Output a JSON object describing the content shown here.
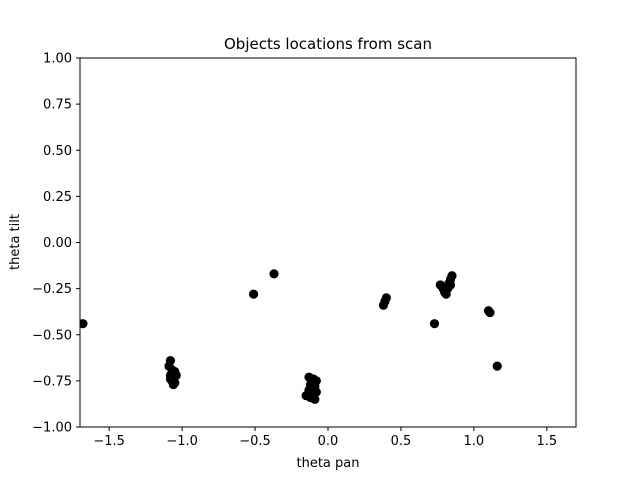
{
  "chart_data": {
    "type": "scatter",
    "title": "Objects locations from scan",
    "xlabel": "theta pan",
    "ylabel": "theta tilt",
    "xlim": [
      -1.7,
      1.7
    ],
    "ylim": [
      -1.0,
      1.0
    ],
    "x_ticks": [
      -1.5,
      -1.0,
      -0.5,
      0.0,
      0.5,
      1.0,
      1.5
    ],
    "x_tick_labels": [
      "−1.5",
      "−1.0",
      "−0.5",
      "0.0",
      "0.5",
      "1.0",
      "1.5"
    ],
    "y_ticks": [
      1.0,
      0.75,
      0.5,
      0.25,
      0.0,
      -0.25,
      -0.5,
      -0.75,
      -1.0
    ],
    "y_tick_labels": [
      "1.00",
      "0.75",
      "0.50",
      "0.25",
      "0.00",
      "−0.25",
      "−0.50",
      "−0.75",
      "−1.00"
    ],
    "grid": false,
    "marker_color": "#000000",
    "points": [
      {
        "x": -1.68,
        "y": -0.44
      },
      {
        "x": -1.08,
        "y": -0.64
      },
      {
        "x": -1.09,
        "y": -0.67
      },
      {
        "x": -1.07,
        "y": -0.69
      },
      {
        "x": -1.05,
        "y": -0.7
      },
      {
        "x": -1.08,
        "y": -0.72
      },
      {
        "x": -1.06,
        "y": -0.73
      },
      {
        "x": -1.04,
        "y": -0.72
      },
      {
        "x": -1.07,
        "y": -0.75
      },
      {
        "x": -1.05,
        "y": -0.76
      },
      {
        "x": -1.06,
        "y": -0.77
      },
      {
        "x": -1.08,
        "y": -0.74
      },
      {
        "x": -0.51,
        "y": -0.28
      },
      {
        "x": -0.37,
        "y": -0.17
      },
      {
        "x": -0.13,
        "y": -0.73
      },
      {
        "x": -0.1,
        "y": -0.74
      },
      {
        "x": -0.08,
        "y": -0.75
      },
      {
        "x": -0.12,
        "y": -0.77
      },
      {
        "x": -0.09,
        "y": -0.78
      },
      {
        "x": -0.13,
        "y": -0.8
      },
      {
        "x": -0.11,
        "y": -0.81
      },
      {
        "x": -0.08,
        "y": -0.81
      },
      {
        "x": -0.15,
        "y": -0.83
      },
      {
        "x": -0.12,
        "y": -0.84
      },
      {
        "x": -0.1,
        "y": -0.84
      },
      {
        "x": -0.09,
        "y": -0.85
      },
      {
        "x": 0.38,
        "y": -0.34
      },
      {
        "x": 0.39,
        "y": -0.32
      },
      {
        "x": 0.4,
        "y": -0.3
      },
      {
        "x": 0.73,
        "y": -0.44
      },
      {
        "x": 0.77,
        "y": -0.23
      },
      {
        "x": 0.79,
        "y": -0.25
      },
      {
        "x": 0.8,
        "y": -0.27
      },
      {
        "x": 0.81,
        "y": -0.28
      },
      {
        "x": 0.82,
        "y": -0.25
      },
      {
        "x": 0.83,
        "y": -0.22
      },
      {
        "x": 0.84,
        "y": -0.2
      },
      {
        "x": 0.85,
        "y": -0.18
      },
      {
        "x": 0.84,
        "y": -0.23
      },
      {
        "x": 1.1,
        "y": -0.37
      },
      {
        "x": 1.11,
        "y": -0.38
      },
      {
        "x": 1.16,
        "y": -0.67
      }
    ]
  }
}
